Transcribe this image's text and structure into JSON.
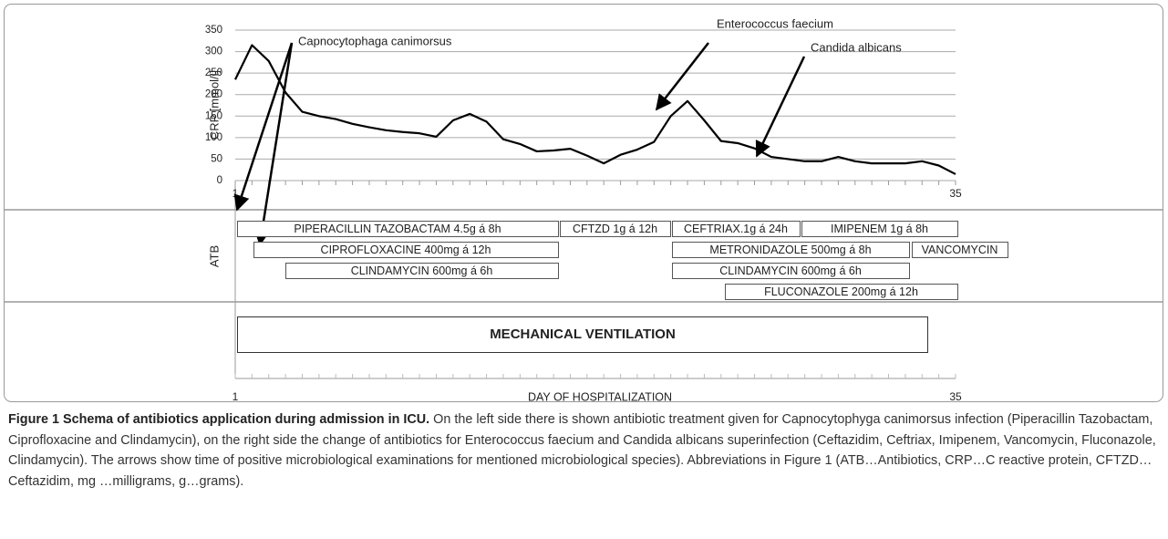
{
  "chart_data": {
    "type": "line",
    "y_label": "CRP [mmol/l]",
    "categories": [
      "1",
      null,
      null,
      null,
      null,
      null,
      null,
      null,
      null,
      null,
      null,
      null,
      null,
      null,
      null,
      null,
      null,
      null,
      null,
      null,
      null,
      null,
      null,
      null,
      null,
      null,
      null,
      null,
      null,
      null,
      null,
      null,
      null,
      null,
      null,
      null,
      null,
      null,
      null,
      null,
      null,
      null,
      null,
      "35"
    ],
    "values": [
      235,
      315,
      278,
      205,
      160,
      150,
      143,
      132,
      124,
      117,
      113,
      110,
      102,
      140,
      155,
      137,
      96,
      85,
      68,
      70,
      74,
      58,
      40,
      60,
      72,
      90,
      150,
      185,
      140,
      92,
      87,
      75,
      55,
      50,
      45,
      45,
      55,
      45,
      40,
      40,
      40,
      45,
      35,
      15
    ],
    "color": "#000000",
    "ylim": [
      0,
      350
    ],
    "yticks": [
      0,
      50,
      100,
      150,
      200,
      250,
      300,
      350
    ],
    "grid": true,
    "annotations": [
      "Capnocytophaga canimorsus",
      "Enterococcus faecium",
      "Candida albicans"
    ]
  },
  "treatment": {
    "label": "ATB",
    "items": [
      "PIPERACILLIN TAZOBACTAM 4.5g á 8h",
      "CFTZD 1g á 12h",
      "CEFTRIAX.1g á 24h",
      "IMIPENEM 1g á 8h",
      "CIPROFLOXACINE 400mg á 12h",
      "METRONIDAZOLE 500mg á 8h",
      "VANCOMYCIN",
      "CLINDAMYCIN 600mg á 6h",
      "CLINDAMYCIN 600mg á 6h",
      "FLUCONAZOLE 200mg á 12h"
    ]
  },
  "ventilation": "MECHANICAL VENTILATION",
  "timeline": {
    "start": "1",
    "end": "35",
    "label": "DAY OF HOSPITALIZATION"
  },
  "caption": {
    "title": "Figure 1 Schema of antibiotics application during admission in ICU.",
    "text": "On the left side there is shown antibiotic treatment given for Capnocytophyga canimorsus infection (Piperacillin Tazobactam, Ciprofloxacine and Clindamycin), on the right side the change of antibiotics for Enterococcus faecium and Candida albicans superinfection (Ceftazidim, Ceftriax, Imipenem, Vancomycin, Fluconazole, Clindamycin). The arrows show time of positive microbiological examinations for mentioned microbiological species). Abbreviations in Figure 1 (ATB…Antibiotics, CRP…C reactive protein, CFTZD…Ceftazidim, mg …milligrams, g…grams)."
  }
}
